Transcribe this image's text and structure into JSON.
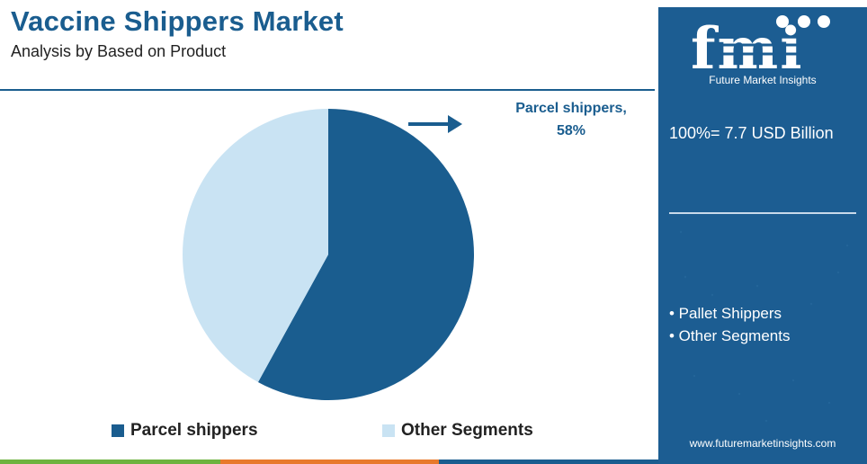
{
  "header": {
    "title": "Vaccine Shippers Market",
    "subtitle": "Analysis by Based on Product"
  },
  "callout": {
    "label_line1": "Parcel shippers,",
    "label_line2": "58%"
  },
  "chart_data": {
    "type": "pie",
    "slices": [
      {
        "label": "Parcel shippers",
        "value": 58,
        "color": "#1a5d8f"
      },
      {
        "label": "Other Segments",
        "value": 42,
        "color": "#c9e3f3"
      }
    ],
    "start_angle_deg": 0,
    "direction": "clockwise",
    "legend_position": "bottom"
  },
  "legend": {
    "items": [
      {
        "label": "Parcel shippers",
        "color": "#1a5d8f"
      },
      {
        "label": "Other Segments",
        "color": "#c9e3f3"
      }
    ]
  },
  "sidebar": {
    "logo_text": "fmi",
    "logo_subtitle": "Future Market Insights",
    "total": "100%= 7.7 USD Billion",
    "bullets": [
      "• Pallet Shippers",
      "• Other Segments"
    ],
    "website": "www.futuremarketinsights.com",
    "background_color": "#1c5d92"
  },
  "footer_bar": {
    "colors": [
      "#6db33f",
      "#e8792c",
      "#1a5d8f"
    ]
  }
}
